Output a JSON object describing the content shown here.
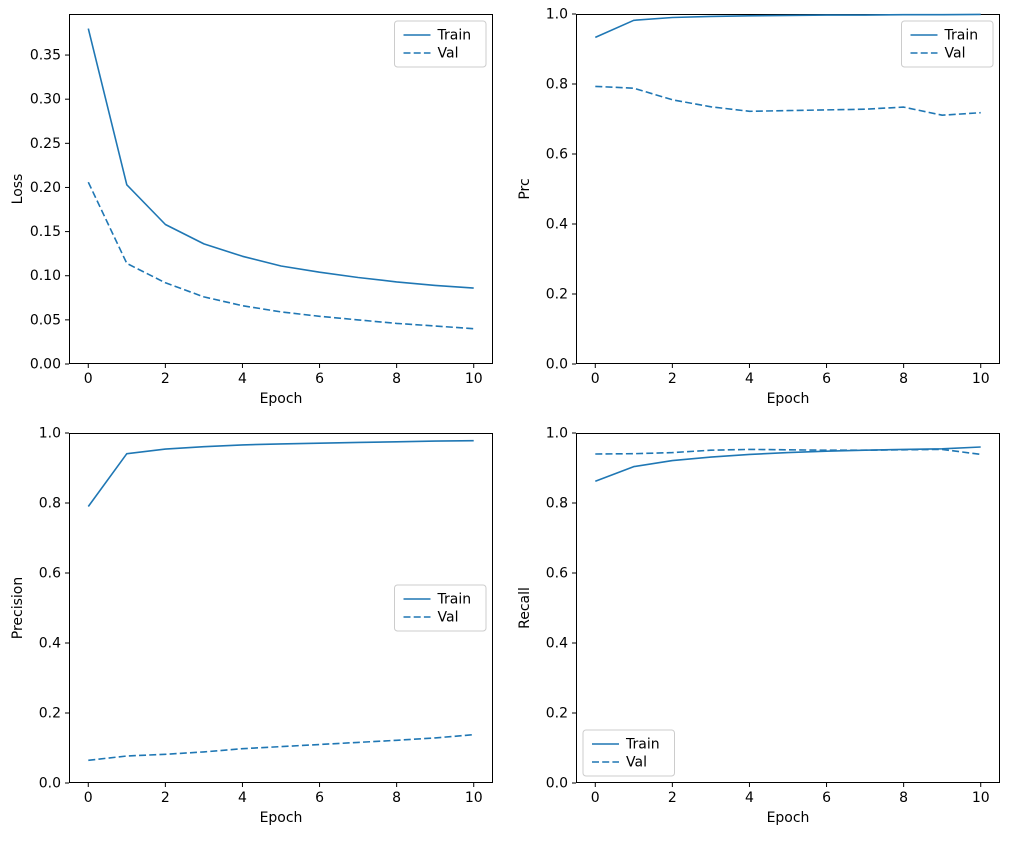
{
  "figure": {
    "background": "#ffffff",
    "line_color": "#1f77b4",
    "legend_edge_color": "#cccccc",
    "legend_face_color": "#ffffff"
  },
  "chart_data": [
    {
      "id": "loss",
      "type": "line",
      "title": "",
      "xlabel": "Epoch",
      "ylabel": "Loss",
      "grid": false,
      "x": [
        0,
        1,
        2,
        3,
        4,
        5,
        6,
        7,
        8,
        9,
        10
      ],
      "series": [
        {
          "name": "Train",
          "style": "solid",
          "values": [
            0.38,
            0.203,
            0.158,
            0.136,
            0.122,
            0.111,
            0.104,
            0.098,
            0.093,
            0.089,
            0.086
          ]
        },
        {
          "name": "Val",
          "style": "dashed",
          "values": [
            0.206,
            0.114,
            0.092,
            0.076,
            0.066,
            0.059,
            0.054,
            0.05,
            0.046,
            0.043,
            0.04
          ]
        }
      ],
      "xlim": [
        -0.5,
        10.5
      ],
      "ylim": [
        0,
        0.3965
      ],
      "xticks": [
        0,
        2,
        4,
        6,
        8,
        10
      ],
      "xtick_labels": [
        "0",
        "2",
        "4",
        "6",
        "8",
        "10"
      ],
      "yticks": [
        0.0,
        0.05,
        0.1,
        0.15,
        0.2,
        0.25,
        0.3,
        0.35
      ],
      "ytick_labels": [
        "0.00",
        "0.05",
        "0.10",
        "0.15",
        "0.20",
        "0.25",
        "0.30",
        "0.35"
      ],
      "legend": {
        "loc": "upper right",
        "entries": [
          "Train",
          "Val"
        ]
      }
    },
    {
      "id": "prc",
      "type": "line",
      "title": "",
      "xlabel": "Epoch",
      "ylabel": "Prc",
      "grid": false,
      "x": [
        0,
        1,
        2,
        3,
        4,
        5,
        6,
        7,
        8,
        9,
        10
      ],
      "series": [
        {
          "name": "Train",
          "style": "solid",
          "values": [
            0.933,
            0.982,
            0.99,
            0.993,
            0.995,
            0.996,
            0.997,
            0.997,
            0.998,
            0.998,
            0.999
          ]
        },
        {
          "name": "Val",
          "style": "dashed",
          "values": [
            0.793,
            0.788,
            0.755,
            0.735,
            0.722,
            0.724,
            0.726,
            0.728,
            0.734,
            0.711,
            0.718
          ]
        }
      ],
      "xlim": [
        -0.5,
        10.5
      ],
      "ylim": [
        0,
        1.0
      ],
      "xticks": [
        0,
        2,
        4,
        6,
        8,
        10
      ],
      "xtick_labels": [
        "0",
        "2",
        "4",
        "6",
        "8",
        "10"
      ],
      "yticks": [
        0.0,
        0.2,
        0.4,
        0.6,
        0.8,
        1.0
      ],
      "ytick_labels": [
        "0.0",
        "0.2",
        "0.4",
        "0.6",
        "0.8",
        "1.0"
      ],
      "legend": {
        "loc": "upper right",
        "entries": [
          "Train",
          "Val"
        ]
      }
    },
    {
      "id": "precision",
      "type": "line",
      "title": "",
      "xlabel": "Epoch",
      "ylabel": "Precision",
      "grid": false,
      "x": [
        0,
        1,
        2,
        3,
        4,
        5,
        6,
        7,
        8,
        9,
        10
      ],
      "series": [
        {
          "name": "Train",
          "style": "solid",
          "values": [
            0.79,
            0.941,
            0.954,
            0.961,
            0.966,
            0.969,
            0.971,
            0.973,
            0.975,
            0.977,
            0.978
          ]
        },
        {
          "name": "Val",
          "style": "dashed",
          "values": [
            0.065,
            0.077,
            0.082,
            0.089,
            0.098,
            0.104,
            0.11,
            0.116,
            0.122,
            0.129,
            0.138
          ]
        }
      ],
      "xlim": [
        -0.5,
        10.5
      ],
      "ylim": [
        0,
        1.0
      ],
      "xticks": [
        0,
        2,
        4,
        6,
        8,
        10
      ],
      "xtick_labels": [
        "0",
        "2",
        "4",
        "6",
        "8",
        "10"
      ],
      "yticks": [
        0.0,
        0.2,
        0.4,
        0.6,
        0.8,
        1.0
      ],
      "ytick_labels": [
        "0.0",
        "0.2",
        "0.4",
        "0.6",
        "0.8",
        "1.0"
      ],
      "legend": {
        "loc": "center right",
        "entries": [
          "Train",
          "Val"
        ]
      }
    },
    {
      "id": "recall",
      "type": "line",
      "title": "",
      "xlabel": "Epoch",
      "ylabel": "Recall",
      "grid": false,
      "x": [
        0,
        1,
        2,
        3,
        4,
        5,
        6,
        7,
        8,
        9,
        10
      ],
      "series": [
        {
          "name": "Train",
          "style": "solid",
          "values": [
            0.862,
            0.904,
            0.921,
            0.931,
            0.939,
            0.944,
            0.948,
            0.951,
            0.953,
            0.955,
            0.96
          ]
        },
        {
          "name": "Val",
          "style": "dashed",
          "values": [
            0.94,
            0.941,
            0.944,
            0.951,
            0.953,
            0.952,
            0.951,
            0.951,
            0.952,
            0.953,
            0.939
          ]
        }
      ],
      "xlim": [
        -0.5,
        10.5
      ],
      "ylim": [
        0,
        1.0
      ],
      "xticks": [
        0,
        2,
        4,
        6,
        8,
        10
      ],
      "xtick_labels": [
        "0",
        "2",
        "4",
        "6",
        "8",
        "10"
      ],
      "yticks": [
        0.0,
        0.2,
        0.4,
        0.6,
        0.8,
        1.0
      ],
      "ytick_labels": [
        "0.0",
        "0.2",
        "0.4",
        "0.6",
        "0.8",
        "1.0"
      ],
      "legend": {
        "loc": "lower left",
        "entries": [
          "Train",
          "Val"
        ]
      }
    }
  ]
}
